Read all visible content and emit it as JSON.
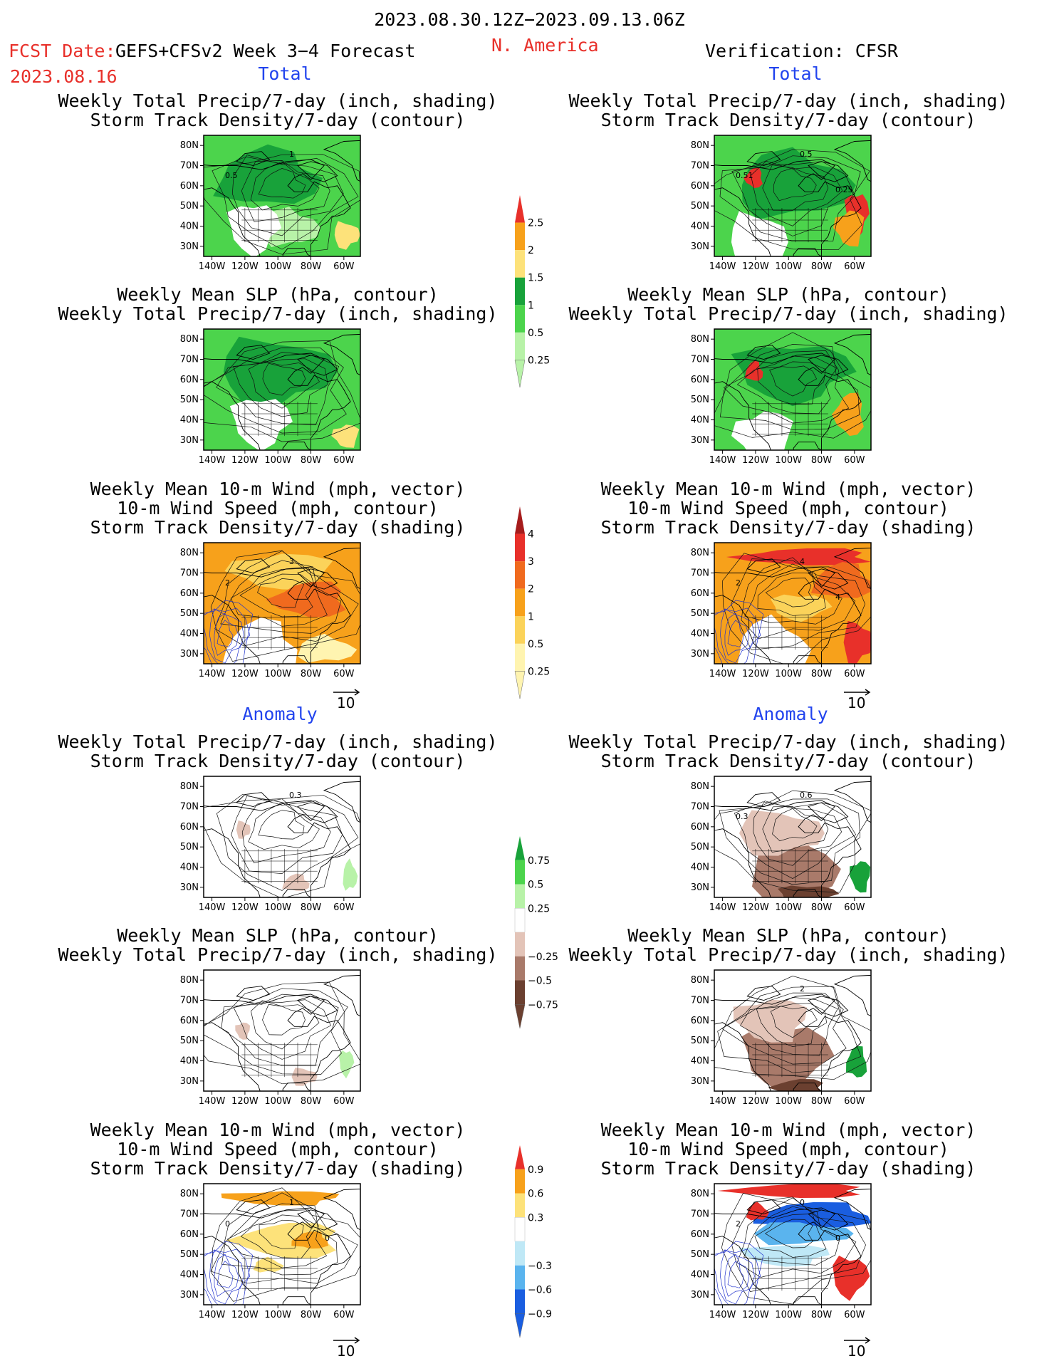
{
  "header": {
    "period": "2023.08.30.12Z−2023.09.13.06Z",
    "fcst_label": "FCST Date:",
    "fcst_date": "2023.08.16",
    "forecast_name": "GEFS+CFSv2 Week 3−4 Forecast",
    "region": "N. America",
    "verification": "Verification: CFSR"
  },
  "sections": {
    "total": "Total",
    "anomaly": "Anomaly"
  },
  "titles": {
    "precip_storm": [
      "Weekly Total Precip/7-day (inch, shading)",
      "Storm Track Density/7-day (contour)"
    ],
    "slp_precip": [
      "Weekly Mean SLP (hPa, contour)",
      "Weekly Total Precip/7-day (inch, shading)"
    ],
    "wind_storm": [
      "Weekly Mean 10-m Wind (mph, vector)",
      "10-m Wind Speed (mph, contour)",
      "Storm Track Density/7-day (shading)"
    ]
  },
  "axes": {
    "lat_ticks": [
      "80N",
      "70N",
      "60N",
      "50N",
      "40N",
      "30N"
    ],
    "lon_ticks": [
      "140W",
      "120W",
      "100W",
      "80W",
      "60W"
    ]
  },
  "vector_ref": "10",
  "colors": {
    "map_border": "#000000",
    "header_red": "#e8302a",
    "section_blue": "#2244ee"
  },
  "colorbars": [
    {
      "id": "precip_total",
      "labels": [
        "2.5",
        "2",
        "1.5",
        "1",
        "0.5",
        "0.25"
      ],
      "colors": [
        "#e8302a",
        "#f7a11b",
        "#fde27a",
        "#18a23a",
        "#4cd44c",
        "#b8f2a8"
      ]
    },
    {
      "id": "storm_total",
      "labels": [
        "4",
        "3",
        "2",
        "1",
        "0.5",
        "0.25"
      ],
      "colors": [
        "#a61c1c",
        "#e8302a",
        "#f06a1e",
        "#f7a11b",
        "#fbd35a",
        "#fff4b0"
      ]
    },
    {
      "id": "precip_anomaly",
      "labels": [
        "0.75",
        "0.5",
        "0.25",
        "−0.25",
        "−0.5",
        "−0.75"
      ],
      "colors": [
        "#18a23a",
        "#4cd44c",
        "#b8f2a8",
        "#ffffff",
        "#e3c4b8",
        "#a97a6a",
        "#6b4030"
      ]
    },
    {
      "id": "storm_anomaly",
      "labels": [
        "0.9",
        "0.6",
        "0.3",
        "−0.3",
        "−0.6",
        "−0.9"
      ],
      "colors": [
        "#e8302a",
        "#f7a11b",
        "#fde27a",
        "#ffffff",
        "#bfe8f6",
        "#5ab4ee",
        "#1a5ee0"
      ]
    }
  ],
  "panels": [
    {
      "id": "fcst-total-precip",
      "column": "forecast",
      "section": "total",
      "title": "precip_storm",
      "contour_labels": [
        "1",
        "0.5"
      ]
    },
    {
      "id": "cfsr-total-precip",
      "column": "verification",
      "section": "total",
      "title": "precip_storm",
      "contour_labels": [
        "0.5",
        "0.51",
        "0.25"
      ]
    },
    {
      "id": "fcst-total-slp",
      "column": "forecast",
      "section": "total",
      "title": "slp_precip",
      "contour_labels": []
    },
    {
      "id": "cfsr-total-slp",
      "column": "verification",
      "section": "total",
      "title": "slp_precip",
      "contour_labels": []
    },
    {
      "id": "fcst-total-wind",
      "column": "forecast",
      "section": "total",
      "title": "wind_storm",
      "contour_labels": [
        "3",
        "2"
      ]
    },
    {
      "id": "cfsr-total-wind",
      "column": "verification",
      "section": "total",
      "title": "wind_storm",
      "contour_labels": [
        "4",
        "2",
        "4"
      ]
    },
    {
      "id": "fcst-anom-precip",
      "column": "forecast",
      "section": "anomaly",
      "title": "precip_storm",
      "contour_labels": [
        "0.3"
      ]
    },
    {
      "id": "cfsr-anom-precip",
      "column": "verification",
      "section": "anomaly",
      "title": "precip_storm",
      "contour_labels": [
        "0.6",
        "0.3"
      ]
    },
    {
      "id": "fcst-anom-slp",
      "column": "forecast",
      "section": "anomaly",
      "title": "slp_precip",
      "contour_labels": []
    },
    {
      "id": "cfsr-anom-slp",
      "column": "verification",
      "section": "anomaly",
      "title": "slp_precip",
      "contour_labels": [
        "2"
      ]
    },
    {
      "id": "fcst-anom-wind",
      "column": "forecast",
      "section": "anomaly",
      "title": "wind_storm",
      "contour_labels": [
        "1",
        "0",
        "0"
      ]
    },
    {
      "id": "cfsr-anom-wind",
      "column": "verification",
      "section": "anomaly",
      "title": "wind_storm",
      "contour_labels": [
        "0",
        "2",
        "0"
      ]
    }
  ],
  "chart_data": {
    "type": "heatmap",
    "title": "2023.08.30.12Z−2023.09.13.06Z",
    "lat_range": [
      "25N",
      "85N"
    ],
    "lon_range": [
      "145W",
      "50W"
    ]
  }
}
